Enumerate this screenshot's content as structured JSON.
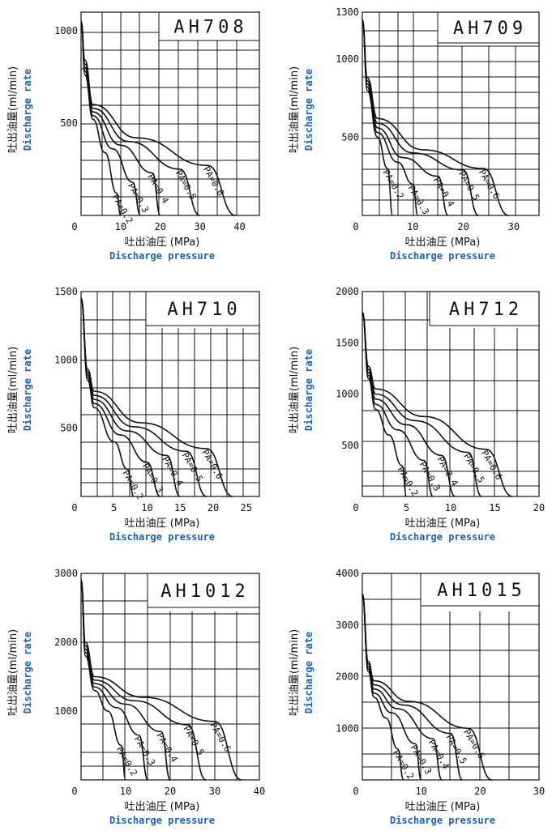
{
  "labels": {
    "ylabel_jp": "吐出油量(ml/min)",
    "ylabel_en": "Discharge rate",
    "xlabel_jp": "吐出油圧 (MPa)",
    "xlabel_en": "Discharge pressure"
  },
  "colors": {
    "line": "#111111",
    "english_label": "#1a62b5"
  },
  "chart_data": [
    {
      "type": "line",
      "title": "AH708",
      "xlabel": "吐出油圧 (MPa)",
      "ylabel": "吐出油量(ml/min)",
      "xlim": [
        0,
        45
      ],
      "ylim": [
        0,
        1100
      ],
      "xticks": [
        0,
        10,
        20,
        30,
        40
      ],
      "yticks": [
        500,
        1000
      ],
      "series": [
        {
          "name": "PA=0.2",
          "x": [
            0,
            1,
            3,
            6,
            9,
            10
          ],
          "y": [
            1050,
            760,
            520,
            340,
            120,
            0
          ]
        },
        {
          "name": "PA=0.3",
          "x": [
            0,
            1,
            3,
            8,
            13,
            15
          ],
          "y": [
            1050,
            780,
            540,
            360,
            180,
            0
          ]
        },
        {
          "name": "PA=0.4",
          "x": [
            0,
            1,
            3,
            10,
            18,
            20
          ],
          "y": [
            1050,
            800,
            560,
            380,
            230,
            0
          ]
        },
        {
          "name": "PA=0.5",
          "x": [
            0,
            1,
            3,
            12,
            25,
            30
          ],
          "y": [
            1050,
            820,
            580,
            400,
            250,
            0
          ]
        },
        {
          "name": "PA=0.6",
          "x": [
            0,
            1,
            3,
            14,
            32,
            39
          ],
          "y": [
            1050,
            840,
            600,
            420,
            270,
            0
          ]
        }
      ]
    },
    {
      "type": "line",
      "title": "AH709",
      "xlabel": "吐出油圧 (MPa)",
      "ylabel": "吐出油量(ml/min)",
      "xlim": [
        0,
        35
      ],
      "ylim": [
        0,
        1300
      ],
      "xticks": [
        0,
        10,
        20,
        30
      ],
      "yticks": [
        500,
        1000,
        1300
      ],
      "series": [
        {
          "name": "PA=0.2",
          "x": [
            0,
            1,
            3,
            5,
            6
          ],
          "y": [
            1250,
            800,
            500,
            300,
            0
          ]
        },
        {
          "name": "PA=0.3",
          "x": [
            0,
            1,
            3,
            7,
            10,
            11
          ],
          "y": [
            1250,
            820,
            530,
            340,
            200,
            0
          ]
        },
        {
          "name": "PA=0.4",
          "x": [
            0,
            1,
            3,
            8,
            15,
            17
          ],
          "y": [
            1250,
            840,
            560,
            370,
            250,
            0
          ]
        },
        {
          "name": "PA=0.5",
          "x": [
            0,
            1,
            3,
            10,
            20,
            23
          ],
          "y": [
            1250,
            860,
            590,
            400,
            290,
            0
          ]
        },
        {
          "name": "PA=0.6",
          "x": [
            0,
            1,
            3,
            12,
            24,
            29
          ],
          "y": [
            1250,
            880,
            620,
            420,
            300,
            0
          ]
        }
      ]
    },
    {
      "type": "line",
      "title": "AH710",
      "xlabel": "吐出油圧 (MPa)",
      "ylabel": "吐出油量(ml/min)",
      "xlim": [
        0,
        27
      ],
      "ylim": [
        0,
        1500
      ],
      "xticks": [
        0,
        5,
        10,
        15,
        20,
        25
      ],
      "yticks": [
        500,
        1000,
        1500
      ],
      "series": [
        {
          "name": "PA=0.2",
          "x": [
            0,
            1,
            2,
            5,
            7,
            8
          ],
          "y": [
            1450,
            850,
            650,
            400,
            200,
            0
          ]
        },
        {
          "name": "PA=0.3",
          "x": [
            0,
            1,
            2,
            6,
            10,
            12
          ],
          "y": [
            1450,
            870,
            680,
            450,
            250,
            0
          ]
        },
        {
          "name": "PA=0.4",
          "x": [
            0,
            1,
            2,
            7,
            13,
            15
          ],
          "y": [
            1450,
            890,
            710,
            480,
            300,
            0
          ]
        },
        {
          "name": "PA=0.5",
          "x": [
            0,
            1,
            2,
            8,
            16,
            19
          ],
          "y": [
            1450,
            910,
            740,
            510,
            330,
            0
          ]
        },
        {
          "name": "PA=0.6",
          "x": [
            0,
            1,
            2,
            9,
            19,
            23
          ],
          "y": [
            1450,
            930,
            770,
            540,
            350,
            0
          ]
        }
      ]
    },
    {
      "type": "line",
      "title": "AH712",
      "xlabel": "吐出油圧 (MPa)",
      "ylabel": "吐出油量(ml/min)",
      "xlim": [
        0,
        20
      ],
      "ylim": [
        0,
        2000
      ],
      "xticks": [
        0,
        5,
        10,
        15,
        20
      ],
      "yticks": [
        500,
        1000,
        1500,
        2000
      ],
      "series": [
        {
          "name": "PA=0.2",
          "x": [
            0,
            0.7,
            1.5,
            3,
            4.5,
            5
          ],
          "y": [
            1800,
            1150,
            850,
            600,
            300,
            0
          ]
        },
        {
          "name": "PA=0.3",
          "x": [
            0,
            0.7,
            1.5,
            4,
            7,
            8
          ],
          "y": [
            1800,
            1180,
            900,
            650,
            350,
            0
          ]
        },
        {
          "name": "PA=0.4",
          "x": [
            0,
            0.7,
            1.5,
            5,
            9,
            10.5
          ],
          "y": [
            1800,
            1210,
            950,
            700,
            400,
            0
          ]
        },
        {
          "name": "PA=0.5",
          "x": [
            0,
            0.7,
            1.5,
            6,
            12,
            13.5
          ],
          "y": [
            1800,
            1240,
            1000,
            740,
            430,
            0
          ]
        },
        {
          "name": "PA=0.6",
          "x": [
            0,
            0.7,
            1.5,
            7,
            14,
            17
          ],
          "y": [
            1800,
            1270,
            1050,
            780,
            460,
            0
          ]
        }
      ]
    },
    {
      "type": "line",
      "title": "AH1012",
      "xlabel": "吐出油圧 (MPa)",
      "ylabel": "吐出油量(ml/min)",
      "xlim": [
        0,
        40
      ],
      "ylim": [
        0,
        3000
      ],
      "xticks": [
        0,
        10,
        20,
        30,
        40
      ],
      "yticks": [
        1000,
        2000,
        3000
      ],
      "series": [
        {
          "name": "PA=0.2",
          "x": [
            0,
            1,
            3,
            6,
            9,
            10
          ],
          "y": [
            2900,
            1800,
            1300,
            1000,
            500,
            0
          ]
        },
        {
          "name": "PA=0.3",
          "x": [
            0,
            1,
            3,
            8,
            13,
            15
          ],
          "y": [
            2900,
            1850,
            1350,
            1050,
            650,
            0
          ]
        },
        {
          "name": "PA=0.4",
          "x": [
            0,
            1,
            3,
            10,
            18,
            20
          ],
          "y": [
            2900,
            1900,
            1400,
            1100,
            700,
            0
          ]
        },
        {
          "name": "PA=0.5",
          "x": [
            0,
            1,
            3,
            12,
            24,
            28
          ],
          "y": [
            2900,
            1950,
            1450,
            1150,
            800,
            0
          ]
        },
        {
          "name": "PA=0.6",
          "x": [
            0,
            1,
            3,
            14,
            30,
            36
          ],
          "y": [
            2900,
            2000,
            1500,
            1200,
            850,
            0
          ]
        }
      ]
    },
    {
      "type": "line",
      "title": "AH1015",
      "xlabel": "吐出油圧 (MPa)",
      "ylabel": "吐出油量(ml/min)",
      "xlim": [
        0,
        30
      ],
      "ylim": [
        0,
        4000
      ],
      "xticks": [
        0,
        10,
        20,
        30
      ],
      "yticks": [
        1000,
        2000,
        3000,
        4000
      ],
      "series": [
        {
          "name": "PA=0.2",
          "x": [
            0,
            1,
            2,
            4,
            6,
            7
          ],
          "y": [
            3600,
            2100,
            1600,
            1200,
            600,
            0
          ]
        },
        {
          "name": "PA=0.3",
          "x": [
            0,
            1,
            2,
            5,
            9,
            10
          ],
          "y": [
            3600,
            2150,
            1680,
            1300,
            700,
            0
          ]
        },
        {
          "name": "PA=0.4",
          "x": [
            0,
            1,
            2,
            6,
            12,
            13.5
          ],
          "y": [
            3600,
            2200,
            1760,
            1380,
            800,
            0
          ]
        },
        {
          "name": "PA=0.5",
          "x": [
            0,
            1,
            2,
            7,
            15,
            17
          ],
          "y": [
            3600,
            2250,
            1840,
            1450,
            900,
            0
          ]
        },
        {
          "name": "PA=0.6",
          "x": [
            0,
            1,
            2,
            8,
            18,
            22
          ],
          "y": [
            3600,
            2300,
            1920,
            1520,
            1000,
            0
          ]
        }
      ]
    }
  ]
}
